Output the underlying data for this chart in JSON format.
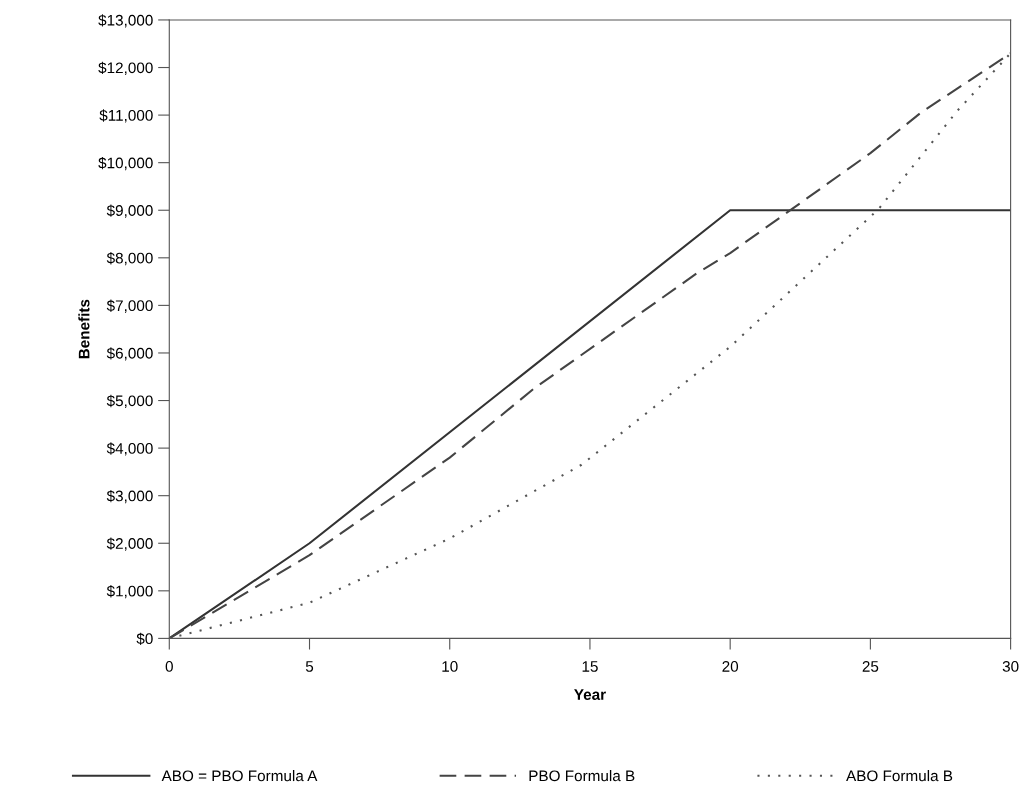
{
  "chart_data": {
    "type": "line",
    "xlabel": "Year",
    "ylabel": "Benefits",
    "xlim": [
      0,
      30
    ],
    "xticks": [
      0,
      5,
      10,
      15,
      20,
      25,
      30
    ],
    "ylim": [
      0,
      13000
    ],
    "yticks": [
      {
        "value": 0,
        "label": "$0"
      },
      {
        "value": 1000,
        "label": "$1,000"
      },
      {
        "value": 2000,
        "label": "$2,000"
      },
      {
        "value": 3000,
        "label": "$3,000"
      },
      {
        "value": 4000,
        "label": "$4,000"
      },
      {
        "value": 5000,
        "label": "$5,000"
      },
      {
        "value": 6000,
        "label": "$6,000"
      },
      {
        "value": 7000,
        "label": "$7,000"
      },
      {
        "value": 8000,
        "label": "$8,000"
      },
      {
        "value": 9000,
        "label": "$9,000"
      },
      {
        "value": 10000,
        "label": "$10,000"
      },
      {
        "value": 11000,
        "label": "$11,000"
      },
      {
        "value": 12000,
        "label": "$12,000"
      },
      {
        "value": 13000,
        "label": "$13,000"
      }
    ],
    "grid": false,
    "legend": "bottom",
    "series": [
      {
        "name": "ABO = PBO Formula A",
        "color": "#333333",
        "line_style": "solid",
        "x": [
          0,
          5,
          20,
          30
        ],
        "values": [
          0,
          2000,
          9000,
          9000
        ]
      },
      {
        "name": "PBO Formula B",
        "color": "#444444",
        "line_style": "dashed",
        "x": [
          0,
          5,
          10,
          13,
          18.8,
          20,
          25,
          26.8,
          30
        ],
        "values": [
          0,
          1750,
          3800,
          5250,
          7670,
          8100,
          10200,
          11050,
          12300
        ]
      },
      {
        "name": "ABO Formula B",
        "color": "#555555",
        "line_style": "dotted",
        "x": [
          0,
          5,
          10,
          14.7,
          20,
          25.3,
          28.1,
          30
        ],
        "values": [
          0,
          750,
          2100,
          3650,
          6130,
          9030,
          11090,
          12300
        ]
      }
    ]
  }
}
